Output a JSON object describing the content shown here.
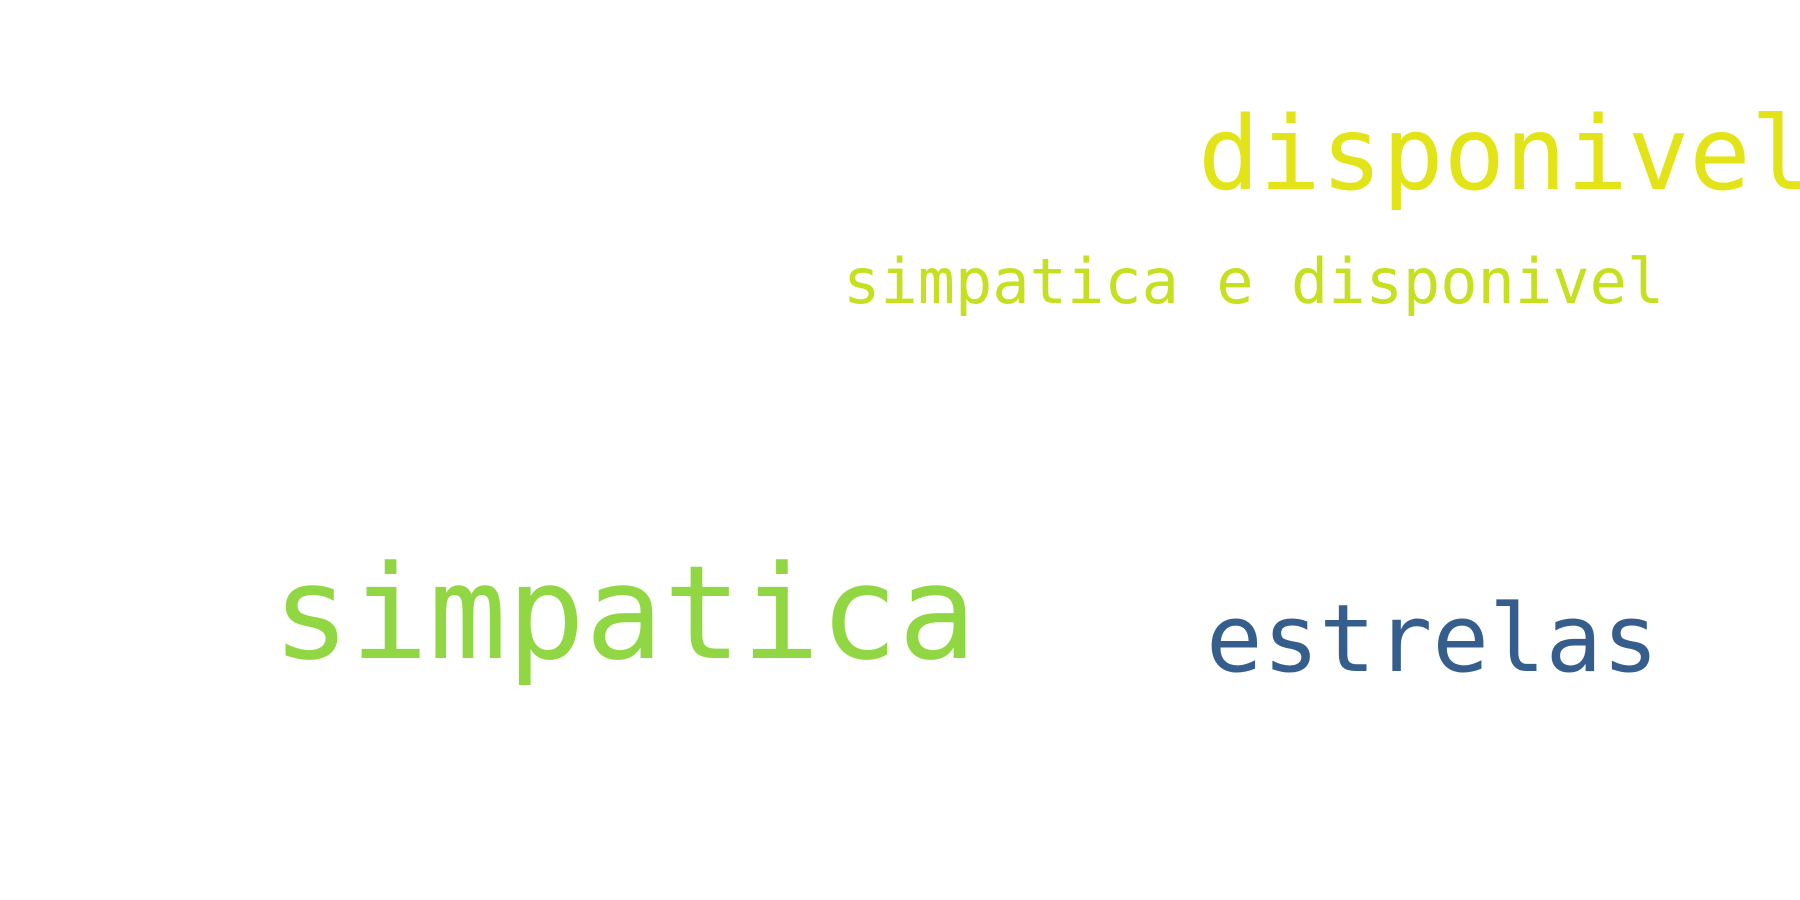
{
  "words": [
    {
      "text": "disponivel",
      "color": "#e2e418"
    },
    {
      "text": "simpatica e disponivel",
      "color": "#c6df1f"
    },
    {
      "text": "simpatica",
      "color": "#90d743"
    },
    {
      "text": "estrelas",
      "color": "#365e8d"
    }
  ]
}
